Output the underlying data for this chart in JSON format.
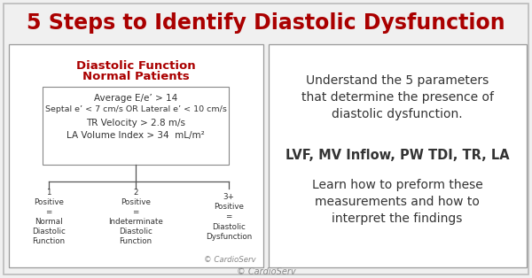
{
  "bg_color": "#f0f0f0",
  "border_color": "#bbbbbb",
  "title": "5 Steps to Identify Diastolic Dysfunction",
  "title_color": "#aa0000",
  "title_fontsize": 17,
  "left_box_title1": "Diastolic Function",
  "left_box_title2": "Normal Patients",
  "left_box_title_color": "#aa0000",
  "criteria": [
    "Average E/e’ > 14",
    "Septal e’ < 7 cm/s OR Lateral e’ < 10 cm/s",
    "TR Velocity > 2.8 m/s",
    "LA Volume Index > 34  mL/m²"
  ],
  "outcome1_label": "1\nPositive\n=\nNormal\nDiastolic\nFunction",
  "outcome2_label": "2\nPositive\n=\nIndeterminate\nDiastolic\nFunction",
  "outcome3_label": "3+\nPositive\n=\nDiastolic\nDysfunction",
  "copyright_left": "© CardioServ",
  "right_text1": "Understand the 5 parameters\nthat determine the presence of\ndiastolic dysfunction.",
  "right_text2": "LVF, MV Inflow, PW TDI, TR, LA",
  "right_text3": "Learn how to preform these\nmeasurements and how to\ninterpret the findings",
  "bottom_copyright": "© CardioServ",
  "box_bg": "#ffffff",
  "box_border": "#999999",
  "text_color": "#333333",
  "line_color": "#555555"
}
